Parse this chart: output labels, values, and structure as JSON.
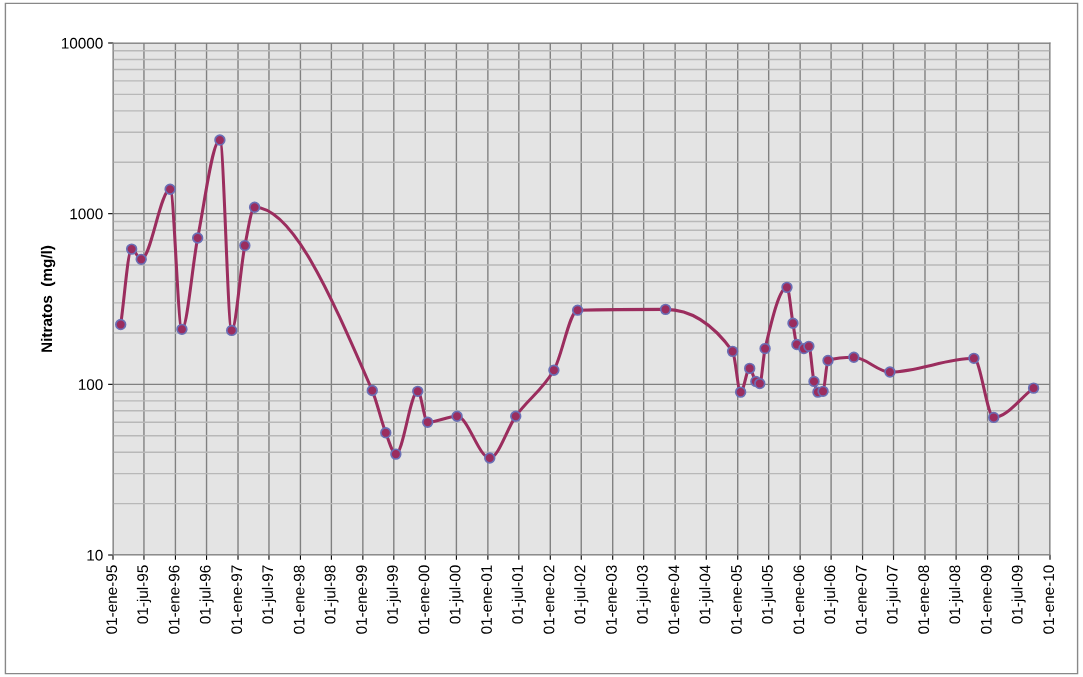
{
  "chart_data": {
    "type": "line",
    "ylabel": "Nitratos  (mg/l)",
    "log": "y",
    "grid": true,
    "marker": "circle",
    "line_style": "solid",
    "ylim": [
      10,
      10000
    ],
    "yticks": [
      10,
      100,
      1000,
      10000
    ],
    "xlim": [
      "1995-01-01",
      "2010-01-01"
    ],
    "xticks": [
      {
        "value": "1995-01-01",
        "label": "01-ene-95"
      },
      {
        "value": "1995-07-01",
        "label": "01-jul-95"
      },
      {
        "value": "1996-01-01",
        "label": "01-ene-96"
      },
      {
        "value": "1996-07-01",
        "label": "01-jul-96"
      },
      {
        "value": "1997-01-01",
        "label": "01-ene-97"
      },
      {
        "value": "1997-07-01",
        "label": "01-jul-97"
      },
      {
        "value": "1998-01-01",
        "label": "01-ene-98"
      },
      {
        "value": "1998-07-01",
        "label": "01-jul-98"
      },
      {
        "value": "1999-01-01",
        "label": "01-ene-99"
      },
      {
        "value": "1999-07-01",
        "label": "01-jul-99"
      },
      {
        "value": "2000-01-01",
        "label": "01-ene-00"
      },
      {
        "value": "2000-07-01",
        "label": "01-jul-00"
      },
      {
        "value": "2001-01-01",
        "label": "01-ene-01"
      },
      {
        "value": "2001-07-01",
        "label": "01-jul-01"
      },
      {
        "value": "2002-01-01",
        "label": "01-ene-02"
      },
      {
        "value": "2002-07-01",
        "label": "01-jul-02"
      },
      {
        "value": "2003-01-01",
        "label": "01-ene-03"
      },
      {
        "value": "2003-07-01",
        "label": "01-jul-03"
      },
      {
        "value": "2004-01-01",
        "label": "01-ene-04"
      },
      {
        "value": "2004-07-01",
        "label": "01-jul-04"
      },
      {
        "value": "2005-01-01",
        "label": "01-ene-05"
      },
      {
        "value": "2005-07-01",
        "label": "01-jul-05"
      },
      {
        "value": "2006-01-01",
        "label": "01-ene-06"
      },
      {
        "value": "2006-07-01",
        "label": "01-jul-06"
      },
      {
        "value": "2007-01-01",
        "label": "01-ene-07"
      },
      {
        "value": "2007-07-01",
        "label": "01-jul-07"
      },
      {
        "value": "2008-01-01",
        "label": "01-ene-08"
      },
      {
        "value": "2008-07-01",
        "label": "01-jul-08"
      },
      {
        "value": "2009-01-01",
        "label": "01-ene-09"
      },
      {
        "value": "2009-07-01",
        "label": "01-jul-09"
      },
      {
        "value": "2010-01-01",
        "label": "01-ene-10"
      }
    ],
    "x": [
      "1995-02-15",
      "1995-04-20",
      "1995-06-15",
      "1995-12-01",
      "1996-02-08",
      "1996-05-10",
      "1996-09-17",
      "1996-11-25",
      "1997-02-10",
      "1997-04-08",
      "1999-02-25",
      "1999-05-15",
      "1999-07-13",
      "1999-11-18",
      "2000-01-15",
      "2000-07-05",
      "2001-01-12",
      "2001-06-13",
      "2002-01-22",
      "2002-06-10",
      "2003-11-06",
      "2004-12-02",
      "2005-01-18",
      "2005-03-12",
      "2005-04-17",
      "2005-05-10",
      "2005-06-10",
      "2005-10-16",
      "2005-11-20",
      "2005-12-13",
      "2006-01-23",
      "2006-02-21",
      "2006-03-23",
      "2006-04-15",
      "2006-05-15",
      "2006-06-13",
      "2006-11-11",
      "2007-06-10",
      "2008-10-13",
      "2009-02-06",
      "2009-09-27"
    ],
    "series": [
      {
        "color": "#9b2d5e",
        "values": [
          224,
          620,
          540,
          1390,
          210,
          720,
          2700,
          207,
          650,
          1090,
          92,
          52,
          39,
          91,
          60,
          65,
          37,
          65,
          121,
          272,
          275,
          156,
          90,
          124,
          104,
          101,
          162,
          370,
          228,
          171,
          162,
          167,
          104,
          90,
          91,
          138,
          144,
          118,
          142,
          64,
          95
        ]
      }
    ]
  }
}
